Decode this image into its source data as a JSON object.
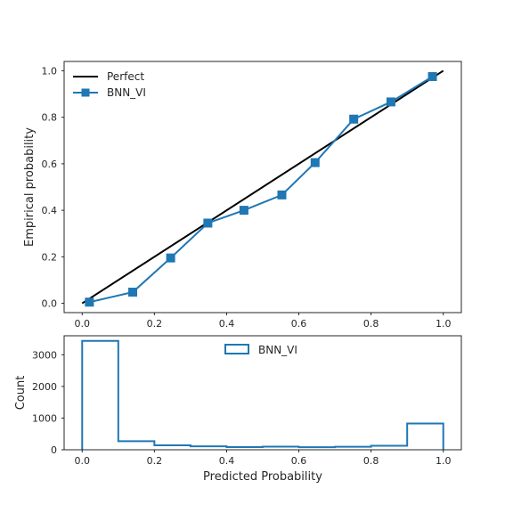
{
  "chart_data": [
    {
      "type": "line",
      "title": "",
      "xlabel": "",
      "ylabel": "Empirical probability",
      "xlim": [
        -0.05,
        1.05
      ],
      "ylim": [
        -0.04,
        1.04
      ],
      "xticks": [
        0.0,
        0.2,
        0.4,
        0.6,
        0.8,
        1.0
      ],
      "xtick_labels": [
        "0.0",
        "0.2",
        "0.4",
        "0.6",
        "0.8",
        "1.0"
      ],
      "yticks": [
        0.0,
        0.2,
        0.4,
        0.6,
        0.8,
        1.0
      ],
      "ytick_labels": [
        "0.0",
        "0.2",
        "0.4",
        "0.6",
        "0.8",
        "1.0"
      ],
      "grid": false,
      "legend": "top-left",
      "series": [
        {
          "name": "Perfect",
          "color": "#000000",
          "marker": "none",
          "x": [
            0.0,
            1.0
          ],
          "y": [
            0.0,
            1.0
          ]
        },
        {
          "name": "BNN_VI",
          "color": "#1f77b4",
          "marker": "square",
          "x": [
            0.02,
            0.14,
            0.245,
            0.348,
            0.448,
            0.553,
            0.645,
            0.752,
            0.855,
            0.97
          ],
          "y": [
            0.005,
            0.048,
            0.195,
            0.345,
            0.4,
            0.466,
            0.605,
            0.792,
            0.866,
            0.975
          ]
        }
      ]
    },
    {
      "type": "histogram",
      "title": "",
      "xlabel": "Predicted Probability",
      "ylabel": "Count",
      "xlim": [
        -0.05,
        1.05
      ],
      "ylim": [
        0,
        3600
      ],
      "xticks": [
        0.0,
        0.2,
        0.4,
        0.6,
        0.8,
        1.0
      ],
      "xtick_labels": [
        "0.0",
        "0.2",
        "0.4",
        "0.6",
        "0.8",
        "1.0"
      ],
      "yticks": [
        0,
        1000,
        2000,
        3000
      ],
      "ytick_labels": [
        "0",
        "1000",
        "2000",
        "3000"
      ],
      "grid": false,
      "legend": "top-center",
      "series": [
        {
          "name": "BNN_VI",
          "color": "#1f77b4",
          "bin_edges": [
            0.0,
            0.1,
            0.2,
            0.3,
            0.4,
            0.5,
            0.6,
            0.7,
            0.8,
            0.9,
            1.0
          ],
          "counts": [
            3440,
            270,
            140,
            110,
            85,
            100,
            80,
            95,
            125,
            830
          ]
        }
      ]
    }
  ]
}
